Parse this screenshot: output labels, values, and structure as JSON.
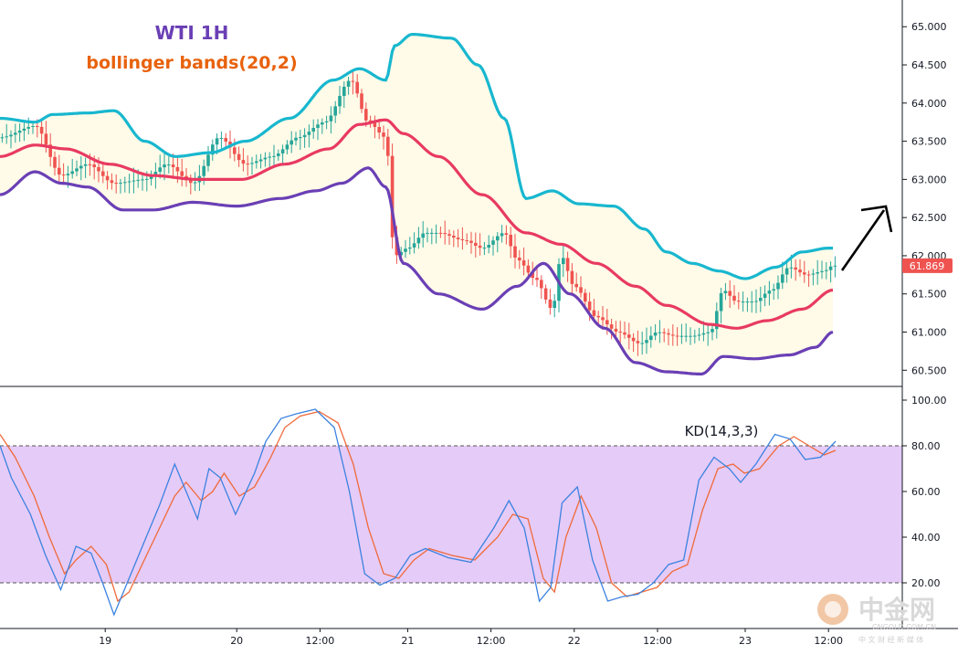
{
  "chart_data": [
    {
      "type": "candlestick",
      "title": "WTI 1H",
      "subtitle": "bollinger bands(20,2)",
      "ylim": [
        60.3,
        65.35
      ],
      "y_ticks": [
        "60.500",
        "61.000",
        "61.500",
        "62.000",
        "62.500",
        "63.000",
        "63.500",
        "64.000",
        "64.500",
        "65.000"
      ],
      "y_tick_values": [
        60.5,
        61.0,
        61.5,
        62.0,
        62.5,
        63.0,
        63.5,
        64.0,
        64.5,
        65.0
      ],
      "x_ticks": [
        "19",
        "20",
        "12:00",
        "21",
        "12:00",
        "22",
        "12:00",
        "23",
        "12:00"
      ],
      "x_tick_index": [
        24,
        54,
        73,
        93,
        112,
        131,
        150,
        170,
        189
      ],
      "last_price": "61.869",
      "bands": {
        "upper_key": [
          [
            0,
            63.8
          ],
          [
            8,
            63.75
          ],
          [
            12,
            63.85
          ],
          [
            20,
            63.87
          ],
          [
            26,
            63.9
          ],
          [
            33,
            63.5
          ],
          [
            40,
            63.3
          ],
          [
            48,
            63.35
          ],
          [
            56,
            63.5
          ],
          [
            66,
            63.8
          ],
          [
            76,
            64.3
          ],
          [
            82,
            64.45
          ],
          [
            88,
            64.3
          ],
          [
            90,
            64.75
          ],
          [
            94,
            64.9
          ],
          [
            103,
            64.85
          ],
          [
            109,
            64.5
          ],
          [
            115,
            63.8
          ],
          [
            120,
            62.75
          ],
          [
            126,
            62.85
          ],
          [
            132,
            62.68
          ],
          [
            140,
            62.65
          ],
          [
            147,
            62.35
          ],
          [
            152,
            62.05
          ],
          [
            158,
            61.9
          ],
          [
            164,
            61.8
          ],
          [
            170,
            61.7
          ],
          [
            177,
            61.85
          ],
          [
            183,
            62.05
          ],
          [
            189,
            62.1
          ]
        ],
        "middle_key": [
          [
            0,
            63.3
          ],
          [
            8,
            63.45
          ],
          [
            15,
            63.4
          ],
          [
            25,
            63.2
          ],
          [
            35,
            63.05
          ],
          [
            45,
            63.0
          ],
          [
            55,
            63.0
          ],
          [
            65,
            63.2
          ],
          [
            75,
            63.4
          ],
          [
            82,
            63.72
          ],
          [
            88,
            63.78
          ],
          [
            92,
            63.6
          ],
          [
            100,
            63.3
          ],
          [
            110,
            62.8
          ],
          [
            120,
            62.3
          ],
          [
            128,
            62.15
          ],
          [
            136,
            61.9
          ],
          [
            145,
            61.6
          ],
          [
            152,
            61.35
          ],
          [
            162,
            61.1
          ],
          [
            168,
            61.05
          ],
          [
            175,
            61.15
          ],
          [
            183,
            61.3
          ],
          [
            190,
            61.55
          ]
        ],
        "lower_key": [
          [
            0,
            62.8
          ],
          [
            8,
            63.1
          ],
          [
            14,
            62.95
          ],
          [
            20,
            62.9
          ],
          [
            28,
            62.6
          ],
          [
            35,
            62.6
          ],
          [
            44,
            62.7
          ],
          [
            54,
            62.65
          ],
          [
            64,
            62.75
          ],
          [
            72,
            62.85
          ],
          [
            78,
            62.95
          ],
          [
            84,
            63.15
          ],
          [
            88,
            62.9
          ],
          [
            92,
            61.9
          ],
          [
            100,
            61.5
          ],
          [
            110,
            61.3
          ],
          [
            118,
            61.6
          ],
          [
            124,
            61.9
          ],
          [
            130,
            61.5
          ],
          [
            138,
            61.05
          ],
          [
            145,
            60.6
          ],
          [
            152,
            60.48
          ],
          [
            160,
            60.45
          ],
          [
            165,
            60.68
          ],
          [
            172,
            60.65
          ],
          [
            180,
            60.7
          ],
          [
            186,
            60.8
          ],
          [
            190,
            61.0
          ]
        ]
      },
      "candles_key": [
        [
          0,
          63.55
        ],
        [
          8,
          63.7
        ],
        [
          14,
          63.05
        ],
        [
          20,
          63.2
        ],
        [
          26,
          62.95
        ],
        [
          33,
          63.0
        ],
        [
          38,
          63.2
        ],
        [
          44,
          62.95
        ],
        [
          50,
          63.55
        ],
        [
          56,
          63.2
        ],
        [
          62,
          63.3
        ],
        [
          68,
          63.55
        ],
        [
          74,
          63.75
        ],
        [
          80,
          64.3
        ],
        [
          84,
          63.75
        ],
        [
          88,
          63.55
        ],
        [
          90,
          62.0
        ],
        [
          93,
          62.1
        ],
        [
          97,
          62.3
        ],
        [
          100,
          62.3
        ],
        [
          106,
          62.2
        ],
        [
          110,
          62.1
        ],
        [
          115,
          62.3
        ],
        [
          118,
          61.95
        ],
        [
          122,
          61.7
        ],
        [
          126,
          61.3
        ],
        [
          128,
          62.0
        ],
        [
          131,
          61.6
        ],
        [
          136,
          61.2
        ],
        [
          141,
          61.0
        ],
        [
          146,
          60.85
        ],
        [
          150,
          61.0
        ],
        [
          154,
          60.95
        ],
        [
          158,
          60.95
        ],
        [
          162,
          61.0
        ],
        [
          165,
          61.55
        ],
        [
          168,
          61.4
        ],
        [
          172,
          61.4
        ],
        [
          176,
          61.55
        ],
        [
          180,
          61.85
        ],
        [
          184,
          61.75
        ],
        [
          188,
          61.8
        ],
        [
          190,
          61.87
        ]
      ]
    },
    {
      "type": "line",
      "title": "KD(14,3,3)",
      "ylim": [
        0,
        106
      ],
      "y_ticks": [
        "20.00",
        "40.00",
        "60.00",
        "80.00",
        "100.00"
      ],
      "y_tick_values": [
        20,
        40,
        60,
        80,
        100
      ],
      "band": [
        20,
        80
      ],
      "band_color": "#e5cbf7",
      "k_key": [
        [
          0,
          80
        ],
        [
          3,
          66
        ],
        [
          8,
          50
        ],
        [
          12,
          32
        ],
        [
          16,
          17
        ],
        [
          20,
          36
        ],
        [
          24,
          33
        ],
        [
          27,
          20
        ],
        [
          30,
          6
        ],
        [
          34,
          22
        ],
        [
          38,
          38
        ],
        [
          42,
          54
        ],
        [
          46,
          72
        ],
        [
          49,
          60
        ],
        [
          52,
          48
        ],
        [
          55,
          70
        ],
        [
          58,
          66
        ],
        [
          62,
          50
        ],
        [
          67,
          68
        ],
        [
          70,
          82
        ],
        [
          74,
          92
        ],
        [
          78,
          94
        ],
        [
          83,
          96
        ],
        [
          88,
          88
        ],
        [
          92,
          60
        ],
        [
          96,
          24
        ],
        [
          100,
          19
        ],
        [
          104,
          22
        ],
        [
          108,
          32
        ],
        [
          112,
          35
        ],
        [
          118,
          31
        ],
        [
          124,
          29
        ],
        [
          130,
          44
        ],
        [
          134,
          56
        ],
        [
          138,
          44
        ],
        [
          142,
          12
        ],
        [
          145,
          18
        ],
        [
          148,
          55
        ],
        [
          152,
          62
        ],
        [
          156,
          30
        ],
        [
          160,
          12
        ],
        [
          164,
          14
        ],
        [
          168,
          15
        ],
        [
          172,
          20
        ],
        [
          176,
          28
        ],
        [
          180,
          30
        ],
        [
          184,
          65
        ],
        [
          188,
          75
        ],
        [
          192,
          70
        ],
        [
          195,
          64
        ],
        [
          199,
          72
        ],
        [
          204,
          85
        ],
        [
          208,
          83
        ],
        [
          212,
          74
        ],
        [
          216,
          75
        ],
        [
          220,
          82
        ]
      ],
      "d_key": [
        [
          0,
          85
        ],
        [
          4,
          75
        ],
        [
          9,
          58
        ],
        [
          13,
          40
        ],
        [
          17,
          24
        ],
        [
          20,
          30
        ],
        [
          24,
          36
        ],
        [
          28,
          28
        ],
        [
          31,
          12
        ],
        [
          34,
          16
        ],
        [
          38,
          30
        ],
        [
          42,
          44
        ],
        [
          46,
          58
        ],
        [
          49,
          64
        ],
        [
          53,
          56
        ],
        [
          56,
          60
        ],
        [
          59,
          68
        ],
        [
          63,
          58
        ],
        [
          67,
          62
        ],
        [
          71,
          74
        ],
        [
          75,
          88
        ],
        [
          79,
          93
        ],
        [
          84,
          95
        ],
        [
          89,
          90
        ],
        [
          93,
          72
        ],
        [
          97,
          44
        ],
        [
          101,
          24
        ],
        [
          105,
          22
        ],
        [
          109,
          30
        ],
        [
          113,
          35
        ],
        [
          119,
          32
        ],
        [
          125,
          30
        ],
        [
          131,
          40
        ],
        [
          135,
          50
        ],
        [
          139,
          48
        ],
        [
          143,
          22
        ],
        [
          146,
          16
        ],
        [
          149,
          40
        ],
        [
          153,
          58
        ],
        [
          157,
          44
        ],
        [
          161,
          20
        ],
        [
          165,
          14
        ],
        [
          169,
          16
        ],
        [
          173,
          18
        ],
        [
          177,
          25
        ],
        [
          181,
          28
        ],
        [
          185,
          52
        ],
        [
          189,
          70
        ],
        [
          193,
          72
        ],
        [
          196,
          68
        ],
        [
          200,
          70
        ],
        [
          205,
          80
        ],
        [
          209,
          84
        ],
        [
          213,
          80
        ],
        [
          217,
          76
        ],
        [
          220,
          78
        ]
      ]
    }
  ],
  "colors": {
    "upper": "#18b7cf",
    "middle": "#e83a62",
    "lower": "#6a3fb5",
    "band_fill": "#fffbe8",
    "candle_up": "#26a69a",
    "candle_down": "#ef5350",
    "k_line": "#3b82e0",
    "d_line": "#ef6a3a",
    "last_tag": "#ef5350"
  },
  "watermark": {
    "name": "中金网",
    "url": "CNGOLD.COM.CN",
    "tagline": "中 文 财 经 新 媒 体"
  }
}
